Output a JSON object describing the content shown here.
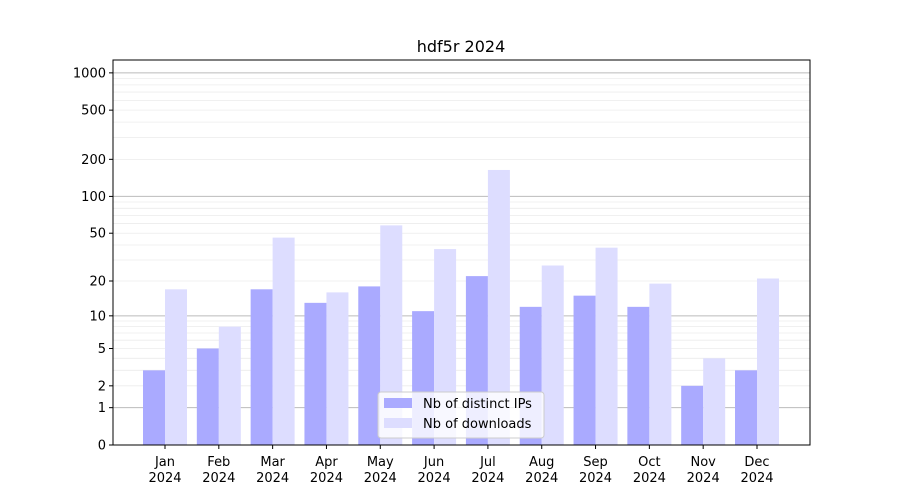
{
  "chart_data": {
    "type": "bar",
    "title": "hdf5r 2024",
    "xlabel": "",
    "ylabel": "",
    "yscale": "symlog (log10(1+y))",
    "ylim": [
      0,
      1270
    ],
    "yticks": [
      0,
      1,
      2,
      5,
      10,
      20,
      50,
      100,
      200,
      500,
      1000
    ],
    "grid": true,
    "legend_placement": "bottom-center",
    "categories": [
      "Jan\n2024",
      "Feb\n2024",
      "Mar\n2024",
      "Apr\n2024",
      "May\n2024",
      "Jun\n2024",
      "Jul\n2024",
      "Aug\n2024",
      "Sep\n2024",
      "Oct\n2024",
      "Nov\n2024",
      "Dec\n2024"
    ],
    "series": [
      {
        "name": "Nb of distinct IPs",
        "color": "#aaaaff",
        "values": [
          3,
          5,
          17,
          13,
          18,
          11,
          22,
          12,
          15,
          12,
          2,
          3
        ]
      },
      {
        "name": "Nb of downloads",
        "color": "#ddddff",
        "values": [
          17,
          8,
          46,
          16,
          58,
          37,
          164,
          27,
          38,
          19,
          4,
          21
        ]
      }
    ]
  }
}
